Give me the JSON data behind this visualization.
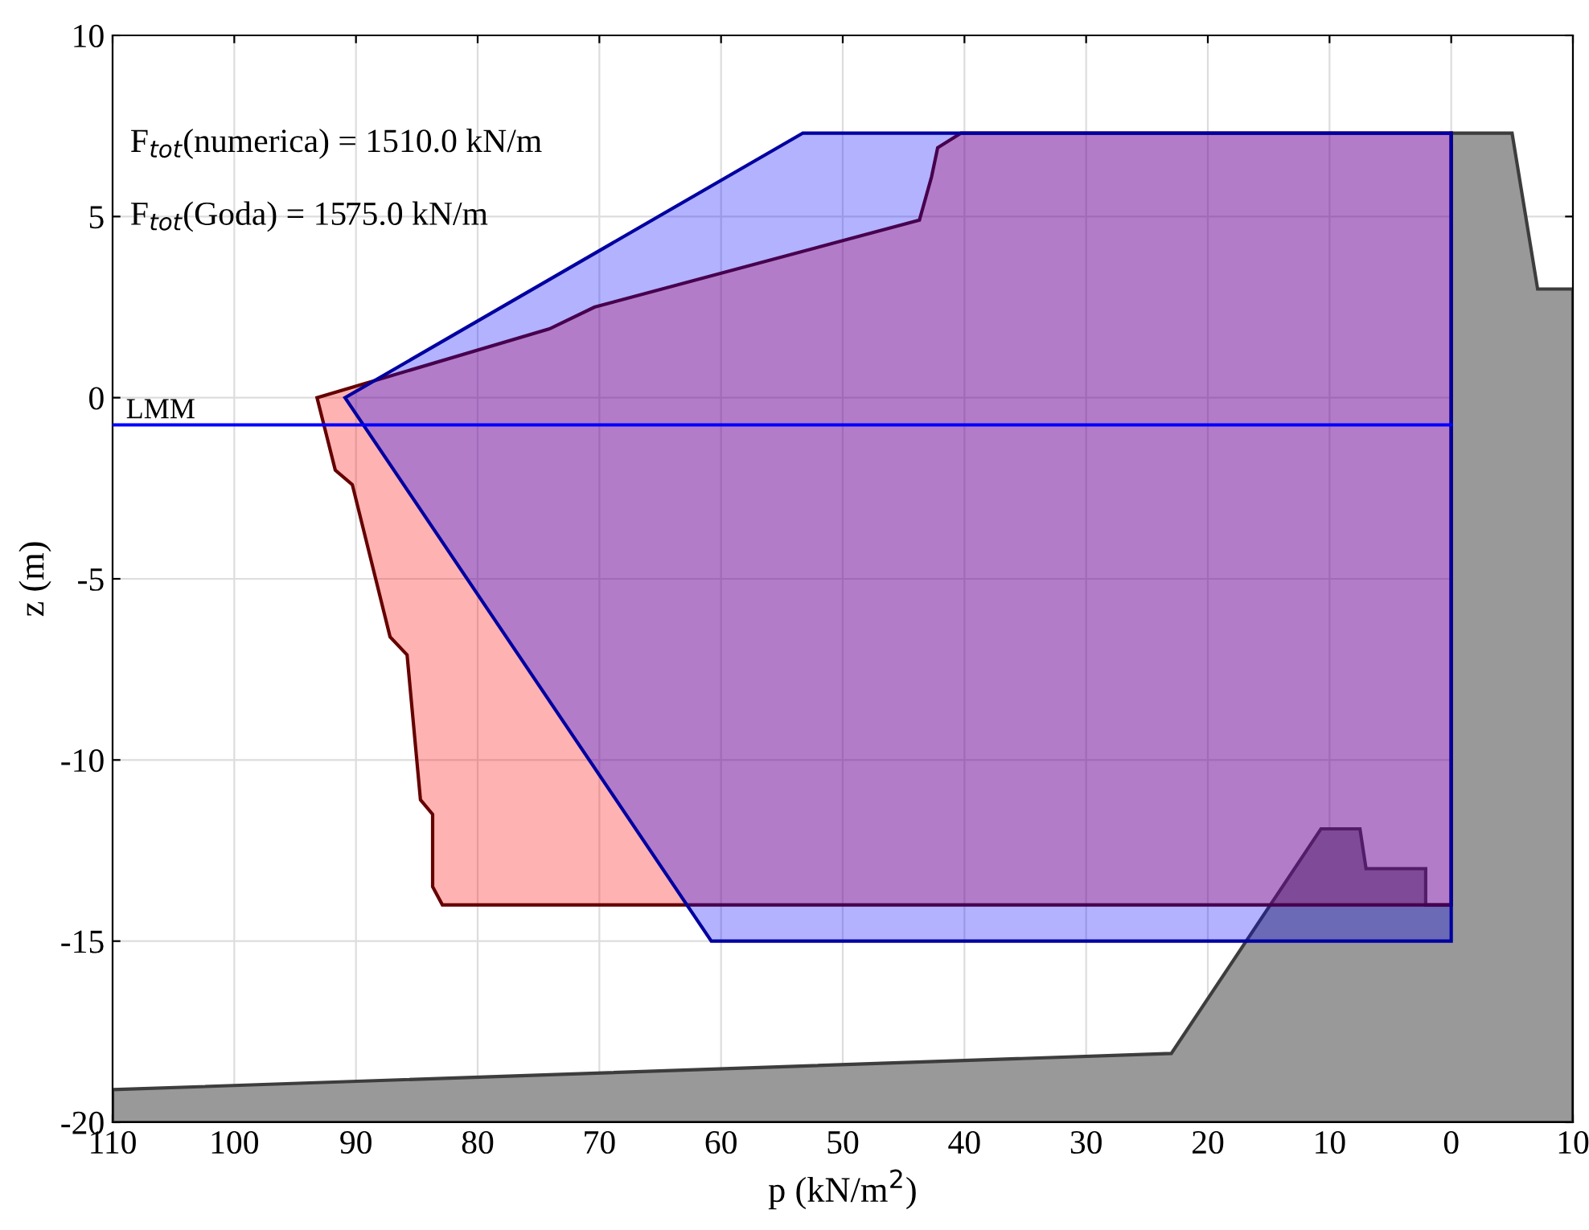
{
  "chart_data": {
    "type": "area",
    "xlabel": "p (kN/m$^{2}$)",
    "ylabel": "z (m)",
    "annotations": [
      "F$_{tot}$(numerica) = 1510.0 kN/m",
      "F$_{tot}$(Goda) = 1575.0 kN/m",
      {
        "text": "LMM",
        "x": 110,
        "y": -0.75
      }
    ],
    "series": [
      {
        "color": "#999999",
        "x": [
          110,
          23,
          10.7,
          7.5,
          7,
          2.1,
          2.1,
          0,
          0,
          -5,
          -7.1,
          -10,
          -10,
          110
        ],
        "values": [
          -19.1,
          -18.1,
          -11.9,
          -11.9,
          -13,
          -13,
          -14,
          -14,
          7.3,
          7.3,
          3,
          3,
          -20,
          -20
        ]
      },
      {
        "color": "#ff0000",
        "x": [
          40.3,
          42.2,
          42.7,
          43.7,
          70.4,
          74.1,
          93.2,
          91.7,
          90.3,
          87.2,
          85.8,
          84.7,
          83.7,
          83.7,
          82.9,
          0,
          0
        ],
        "values": [
          7.3,
          6.9,
          6.1,
          4.9,
          2.5,
          1.9,
          0,
          -2,
          -2.4,
          -6.6,
          -7.1,
          -11.1,
          -11.5,
          -13.5,
          -14,
          -14,
          7.3
        ]
      },
      {
        "color": "#0000ff",
        "x": [
          53.3,
          90.9,
          60.8,
          0,
          0
        ],
        "values": [
          7.3,
          0,
          -15,
          -15,
          7.3
        ]
      },
      {
        "type": "line",
        "color": "#0000ff",
        "x": [
          110,
          0
        ],
        "values": [
          -0.75,
          -0.75
        ]
      }
    ],
    "xlim": [
      110,
      -10
    ],
    "xticks": [
      110,
      100,
      90,
      80,
      70,
      60,
      50,
      40,
      30,
      20,
      10,
      0,
      {
        "value": -10,
        "label": "10"
      }
    ],
    "ylim": [
      -20,
      10
    ],
    "yticks": [
      -20,
      -15,
      -10,
      -5,
      0,
      5,
      10
    ],
    "grid": true
  }
}
